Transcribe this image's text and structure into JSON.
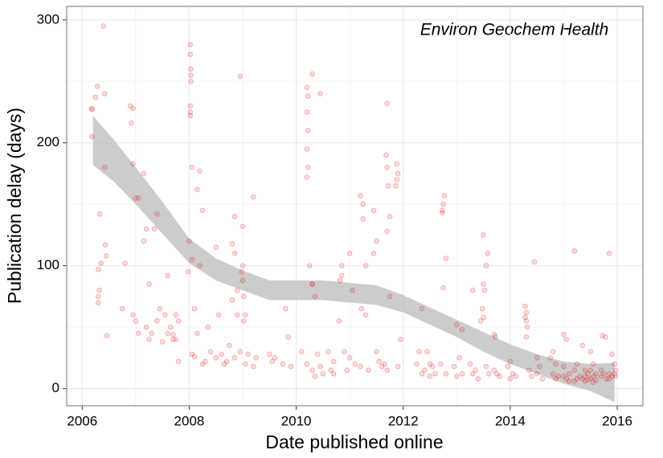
{
  "chart_data": {
    "type": "scatter",
    "annotation": "Environ Geochem Health",
    "xlabel": "Date published online",
    "ylabel": "Publication delay (days)",
    "xlim": [
      2005.71,
      2016.48
    ],
    "ylim": [
      -14,
      311
    ],
    "xticks": [
      2006,
      2008,
      2010,
      2012,
      2014,
      2016
    ],
    "yticks": [
      0,
      100,
      200,
      300
    ],
    "x_minor_grid": [
      2007,
      2009,
      2011,
      2013,
      2015
    ],
    "y_minor_grid": [
      50,
      150,
      250
    ],
    "grid": true,
    "color": "#e41a1c",
    "ribbon": {
      "color": "#bfbfbf",
      "x": [
        2006.2,
        2006.6,
        2007,
        2007.5,
        2008,
        2008.5,
        2009,
        2009.5,
        2010,
        2010.5,
        2011,
        2011.5,
        2012,
        2012.5,
        2013,
        2013.5,
        2014,
        2014.5,
        2015,
        2015.5,
        2015.95
      ],
      "upper": [
        222,
        202,
        180,
        152,
        122,
        106,
        96,
        88,
        88,
        88,
        86,
        84,
        76,
        66,
        56,
        46,
        36,
        28,
        22,
        20,
        21
      ],
      "lower": [
        182,
        168,
        150,
        126,
        102,
        88,
        80,
        72,
        72,
        72,
        70,
        68,
        62,
        52,
        42,
        30,
        20,
        12,
        4,
        -2,
        -11
      ]
    },
    "x": [
      2006.18,
      2006.18,
      2006.25,
      2006.28,
      2006.18,
      2006.3,
      2006.3,
      2006.32,
      2006.3,
      2006.33,
      2006.35,
      2006.4,
      2006.42,
      2006.42,
      2006.43,
      2006.45,
      2006.46,
      2006.75,
      2006.8,
      2006.9,
      2006.95,
      2006.92,
      2006.95,
      2007.0,
      2007.05,
      2006.95,
      2007.0,
      2007.05,
      2007.15,
      2007.2,
      2007.15,
      2007.25,
      2007.2,
      2007.3,
      2007.25,
      2007.4,
      2007.35,
      2007.45,
      2007.4,
      2007.5,
      2007.6,
      2007.55,
      2007.65,
      2007.6,
      2007.7,
      2007.75,
      2007.8,
      2007.75,
      2007.8,
      2007.7,
      2008.02,
      2008.02,
      2008.03,
      2008.03,
      2008.03,
      2008.02,
      2008.02,
      2008.02,
      2008.05,
      2008.0,
      2008.05,
      2007.98,
      2008.1,
      2008.05,
      2008.1,
      2008.15,
      2008.2,
      2008.15,
      2008.25,
      2008.2,
      2008.3,
      2008.25,
      2008.4,
      2008.35,
      2008.5,
      2008.55,
      2008.6,
      2008.5,
      2008.65,
      2008.7,
      2008.85,
      2008.8,
      2008.85,
      2008.9,
      2008.8,
      2008.9,
      2008.75,
      2008.95,
      2008.85,
      2008.95,
      2009.0,
      2009.0,
      2008.98,
      2009.0,
      2009.02,
      2009.05,
      2009.02,
      2009.1,
      2009.05,
      2009.2,
      2009.25,
      2009.2,
      2009.5,
      2009.55,
      2009.6,
      2009.8,
      2009.85,
      2009.75,
      2009.9,
      2010.2,
      2010.22,
      2010.2,
      2010.22,
      2010.2,
      2010.22,
      2010.2,
      2010.25,
      2010.3,
      2010.1,
      2010.2,
      2010.3,
      2010.3,
      2010.45,
      2010.3,
      2010.35,
      2010.4,
      2010.45,
      2010.5,
      2010.35,
      2010.6,
      2010.7,
      2010.65,
      2010.7,
      2010.85,
      2010.85,
      2010.82,
      2010.8,
      2010.9,
      2010.95,
      2011.0,
      2011.05,
      2011.0,
      2011.1,
      2011.2,
      2011.25,
      2011.25,
      2011.3,
      2011.22,
      2011.3,
      2011.2,
      2011.35,
      2011.45,
      2011.5,
      2011.45,
      2011.5,
      2011.55,
      2011.6,
      2011.7,
      2011.68,
      2011.7,
      2011.72,
      2011.75,
      2011.7,
      2011.75,
      2011.65,
      2011.7,
      2011.88,
      2011.9,
      2011.88,
      2011.86,
      2011.95,
      2011.9,
      2012.35,
      2012.3,
      2012.25,
      2012.4,
      2012.35,
      2012.5,
      2012.55,
      2012.6,
      2012.5,
      2012.45,
      2012.77,
      2012.75,
      2012.73,
      2012.73,
      2012.8,
      2012.75,
      2012.7,
      2012.8,
      2013.0,
      2013.1,
      2013.05,
      2012.95,
      2013.1,
      2013.0,
      2013.3,
      2013.25,
      2013.35,
      2013.3,
      2013.4,
      2013.5,
      2013.58,
      2013.55,
      2013.5,
      2013.52,
      2013.48,
      2013.5,
      2013.45,
      2013.55,
      2013.6,
      2013.7,
      2013.72,
      2013.7,
      2013.75,
      2013.8,
      2014.0,
      2013.95,
      2014.05,
      2014.1,
      2014.0,
      2014.28,
      2014.3,
      2014.28,
      2014.3,
      2014.32,
      2014.3,
      2014.35,
      2014.4,
      2014.45,
      2014.5,
      2014.55,
      2014.5,
      2014.6,
      2014.8,
      2014.75,
      2014.85,
      2014.8,
      2014.9,
      2014.85,
      2015.0,
      2015.05,
      2015.0,
      2015.1,
      2015.0,
      2015.05,
      2015.1,
      2015.2,
      2015.25,
      2015.2,
      2015.3,
      2015.25,
      2015.2,
      2015.35,
      2015.4,
      2015.45,
      2015.4,
      2015.35,
      2015.45,
      2015.4,
      2015.5,
      2015.55,
      2015.5,
      2015.6,
      2015.55,
      2015.5,
      2015.6,
      2015.55,
      2015.72,
      2015.78,
      2015.7,
      2015.75,
      2015.7,
      2015.8,
      2015.85,
      2015.9,
      2015.85,
      2015.9,
      2015.85,
      2015.95,
      2015.97,
      2015.95,
      2015.97
    ],
    "values": [
      227,
      205,
      237,
      246,
      228,
      75,
      70,
      80,
      97,
      142,
      102,
      295,
      240,
      180,
      117,
      108,
      43,
      65,
      102,
      230,
      228,
      216,
      183,
      155,
      155,
      60,
      55,
      45,
      175,
      130,
      120,
      85,
      50,
      45,
      40,
      142,
      130,
      65,
      55,
      38,
      92,
      60,
      50,
      45,
      40,
      60,
      55,
      40,
      22,
      44,
      280,
      272,
      260,
      255,
      250,
      230,
      225,
      222,
      180,
      120,
      105,
      95,
      65,
      28,
      26,
      45,
      177,
      162,
      145,
      100,
      22,
      20,
      30,
      50,
      115,
      60,
      28,
      25,
      20,
      22,
      140,
      118,
      110,
      80,
      72,
      60,
      35,
      30,
      25,
      254,
      132,
      100,
      95,
      88,
      75,
      60,
      55,
      28,
      20,
      156,
      25,
      18,
      28,
      22,
      25,
      65,
      42,
      20,
      18,
      245,
      238,
      225,
      210,
      195,
      180,
      172,
      100,
      85,
      30,
      20,
      15,
      256,
      240,
      85,
      75,
      28,
      18,
      12,
      10,
      30,
      22,
      15,
      12,
      100,
      92,
      88,
      55,
      30,
      15,
      110,
      80,
      25,
      20,
      157,
      150,
      138,
      100,
      65,
      60,
      18,
      15,
      145,
      120,
      110,
      30,
      22,
      18,
      232,
      190,
      180,
      165,
      140,
      128,
      75,
      20,
      15,
      183,
      175,
      170,
      165,
      40,
      18,
      65,
      30,
      20,
      15,
      12,
      20,
      18,
      12,
      10,
      30,
      157,
      150,
      145,
      143,
      106,
      82,
      20,
      12,
      52,
      48,
      25,
      18,
      12,
      10,
      80,
      20,
      15,
      12,
      8,
      125,
      110,
      100,
      85,
      80,
      65,
      58,
      55,
      18,
      12,
      44,
      42,
      15,
      12,
      10,
      22,
      18,
      12,
      10,
      8,
      67,
      62,
      58,
      55,
      50,
      42,
      15,
      10,
      103,
      25,
      18,
      12,
      8,
      30,
      25,
      20,
      12,
      10,
      8,
      44,
      40,
      18,
      12,
      10,
      8,
      6,
      112,
      20,
      15,
      10,
      8,
      6,
      35,
      15,
      12,
      10,
      8,
      7,
      6,
      30,
      20,
      15,
      12,
      10,
      8,
      7,
      5,
      43,
      42,
      15,
      12,
      10,
      8,
      110,
      28,
      12,
      10,
      8,
      20,
      15,
      12,
      10
    ]
  }
}
